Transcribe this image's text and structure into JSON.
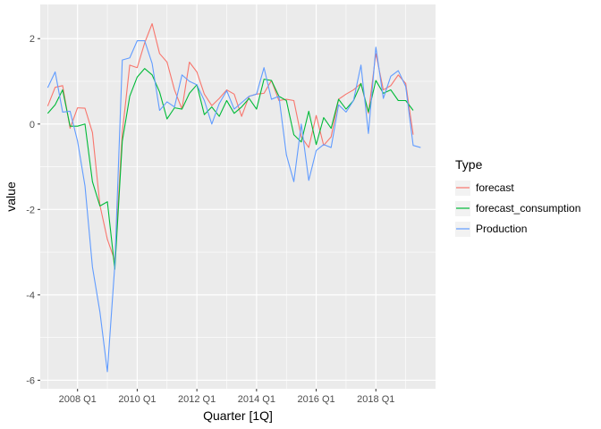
{
  "chart_data": {
    "type": "line",
    "xlabel": "Quarter [1Q]",
    "ylabel": "value",
    "x_ticks": [
      {
        "label": "2008 Q1",
        "t": 4
      },
      {
        "label": "2010 Q1",
        "t": 12
      },
      {
        "label": "2012 Q1",
        "t": 20
      },
      {
        "label": "2014 Q1",
        "t": 28
      },
      {
        "label": "2016 Q1",
        "t": 36
      },
      {
        "label": "2018 Q1",
        "t": 44
      }
    ],
    "y_ticks": [
      -6,
      -4,
      -2,
      0,
      2
    ],
    "xlim": [
      -1,
      52
    ],
    "ylim": [
      -6.2,
      2.8
    ],
    "grid": true,
    "legend": {
      "title": "Type",
      "placement": "right",
      "entries": [
        {
          "name": "forecast",
          "color": "#F8766D"
        },
        {
          "name": "forecast_consumption",
          "color": "#00BA38"
        },
        {
          "name": "Production",
          "color": "#619CFF"
        }
      ]
    },
    "series": [
      {
        "name": "forecast",
        "color": "#F8766D",
        "values": [
          0.42,
          0.86,
          0.9,
          -0.1,
          0.38,
          0.37,
          -0.2,
          -1.9,
          -2.7,
          -3.2,
          -0.2,
          1.38,
          1.32,
          1.9,
          2.35,
          1.65,
          1.45,
          0.8,
          0.35,
          1.45,
          1.22,
          0.7,
          0.43,
          0.6,
          0.8,
          0.7,
          0.18,
          0.65,
          0.7,
          0.72,
          1.02,
          0.55,
          0.58,
          0.55,
          -0.3,
          -0.55,
          0.2,
          -0.5,
          -0.3,
          0.58,
          0.7,
          0.8,
          0.95,
          0.25,
          1.65,
          0.8,
          0.9,
          1.15,
          0.95,
          -0.25
        ]
      },
      {
        "name": "forecast_consumption",
        "color": "#00BA38",
        "values": [
          0.25,
          0.45,
          0.8,
          -0.05,
          -0.05,
          0.0,
          -1.35,
          -1.92,
          -1.82,
          -3.4,
          -0.4,
          0.65,
          1.1,
          1.3,
          1.15,
          0.75,
          0.12,
          0.38,
          0.35,
          0.72,
          0.92,
          0.22,
          0.4,
          0.18,
          0.55,
          0.25,
          0.4,
          0.6,
          0.35,
          1.05,
          1.02,
          0.65,
          0.55,
          -0.25,
          -0.42,
          0.3,
          -0.48,
          0.15,
          -0.1,
          0.58,
          0.35,
          0.55,
          0.95,
          0.28,
          1.02,
          0.72,
          0.8,
          0.55,
          0.55,
          0.32
        ]
      },
      {
        "name": "Production",
        "color": "#619CFF",
        "values": [
          0.85,
          1.22,
          0.28,
          0.3,
          -0.4,
          -1.45,
          -3.35,
          -4.4,
          -5.8,
          -3.3,
          1.5,
          1.55,
          1.95,
          1.95,
          1.42,
          0.32,
          0.52,
          0.4,
          1.15,
          1.0,
          0.92,
          0.55,
          0.0,
          0.48,
          0.78,
          0.35,
          0.5,
          0.65,
          0.7,
          1.32,
          0.58,
          0.65,
          -0.72,
          -1.35,
          0.0,
          -1.32,
          -0.62,
          -0.48,
          -0.55,
          0.45,
          0.28,
          0.55,
          1.38,
          -0.22,
          1.8,
          0.6,
          1.12,
          1.25,
          0.88,
          -0.5,
          -0.55
        ]
      }
    ]
  }
}
